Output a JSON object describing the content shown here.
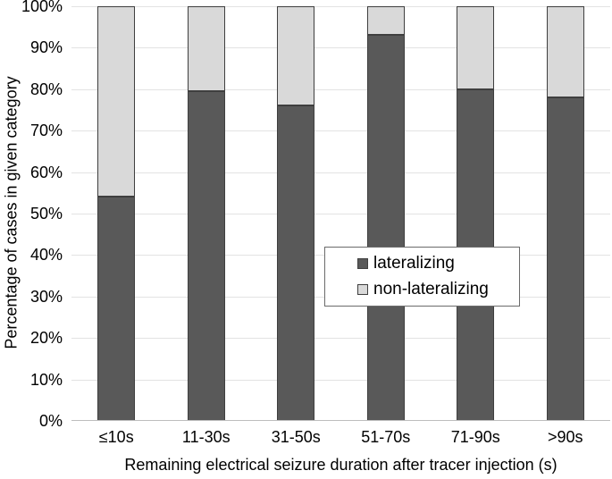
{
  "chart_data": {
    "type": "bar",
    "variant": "100-percent-stacked-column",
    "title": "",
    "categories": [
      "≤10s",
      "11-30s",
      "31-50s",
      "51-70s",
      "71-90s",
      ">90s"
    ],
    "series": [
      {
        "name": "lateralizing",
        "color": "#595959",
        "values": [
          54,
          79.5,
          76,
          93,
          80,
          78
        ]
      },
      {
        "name": "non-lateralizing",
        "color": "#d9d9d9",
        "values": [
          46,
          20.5,
          24,
          7,
          20,
          22
        ]
      }
    ],
    "xlabel": "Remaining electrical seizure duration after tracer injection (s)",
    "ylabel": "Percentage of cases in given category",
    "ylim": [
      0,
      100
    ],
    "y_tick_labels": [
      "0%",
      "10%",
      "20%",
      "30%",
      "40%",
      "50%",
      "60%",
      "70%",
      "80%",
      "90%",
      "100%"
    ],
    "grid": true,
    "legend_position": "inside-center-right",
    "colors": {
      "bar_border": "#3f3f3f",
      "gridline": "#e3e3e3",
      "axis_line": "#bdbdbd",
      "legend_border": "#6b6b6b",
      "text": "#000000",
      "background": "#ffffff"
    }
  }
}
